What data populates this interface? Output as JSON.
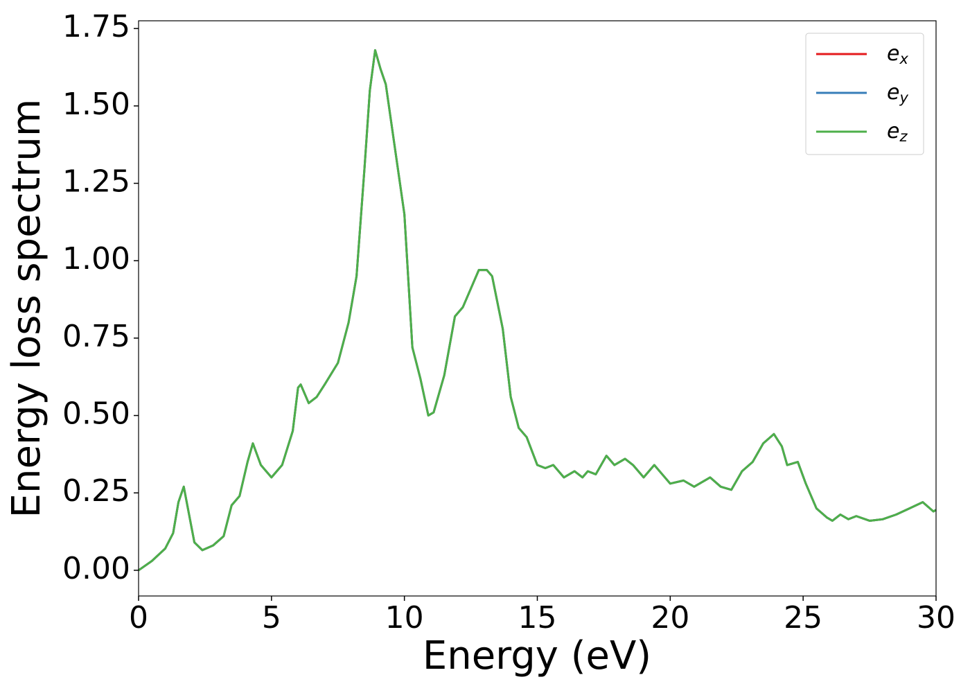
{
  "chart_data": {
    "type": "line",
    "xlabel": "Energy (eV)",
    "ylabel": "Energy loss spectrum",
    "xlim": [
      0,
      30
    ],
    "ylim": [
      -0.083,
      1.775
    ],
    "xticks": [
      0,
      5,
      10,
      15,
      20,
      25,
      30
    ],
    "yticks": [
      {
        "value": 0,
        "label": "0.00"
      },
      {
        "value": 0.25,
        "label": "0.25"
      },
      {
        "value": 0.5,
        "label": "0.50"
      },
      {
        "value": 0.75,
        "label": "0.75"
      },
      {
        "value": 1,
        "label": "1.00"
      },
      {
        "value": 1.25,
        "label": "1.25"
      },
      {
        "value": 1.5,
        "label": "1.50"
      },
      {
        "value": 1.75,
        "label": "1.75"
      }
    ],
    "legend": "upper right",
    "x": [
      0,
      0.5,
      1.0,
      1.3,
      1.5,
      1.7,
      1.9,
      2.1,
      2.4,
      2.8,
      3.2,
      3.5,
      3.8,
      4.1,
      4.3,
      4.6,
      5.0,
      5.4,
      5.8,
      6.0,
      6.1,
      6.4,
      6.7,
      7.0,
      7.5,
      7.9,
      8.2,
      8.5,
      8.7,
      8.9,
      9.1,
      9.3,
      9.7,
      10.0,
      10.3,
      10.6,
      10.9,
      11.1,
      11.5,
      11.9,
      12.2,
      12.5,
      12.8,
      13.1,
      13.3,
      13.7,
      14.0,
      14.3,
      14.6,
      15.0,
      15.3,
      15.6,
      16.0,
      16.4,
      16.7,
      16.9,
      17.2,
      17.6,
      17.9,
      18.3,
      18.6,
      19.0,
      19.4,
      19.7,
      20.0,
      20.5,
      20.9,
      21.5,
      21.9,
      22.3,
      22.7,
      23.1,
      23.5,
      23.9,
      24.2,
      24.4,
      24.8,
      25.1,
      25.5,
      25.9,
      26.1,
      26.4,
      26.7,
      27.0,
      27.5,
      28.0,
      28.5,
      29.0,
      29.5,
      29.9,
      30.0
    ],
    "series": [
      {
        "name": "ex",
        "color": "#e41a1c",
        "values": [
          0.0,
          0.03,
          0.07,
          0.12,
          0.22,
          0.27,
          0.18,
          0.09,
          0.065,
          0.08,
          0.11,
          0.21,
          0.24,
          0.35,
          0.41,
          0.34,
          0.3,
          0.34,
          0.45,
          0.59,
          0.6,
          0.54,
          0.56,
          0.6,
          0.67,
          0.8,
          0.95,
          1.3,
          1.55,
          1.68,
          1.62,
          1.57,
          1.33,
          1.15,
          0.72,
          0.62,
          0.5,
          0.51,
          0.63,
          0.82,
          0.85,
          0.91,
          0.97,
          0.97,
          0.95,
          0.78,
          0.56,
          0.46,
          0.43,
          0.34,
          0.33,
          0.34,
          0.3,
          0.32,
          0.3,
          0.32,
          0.31,
          0.37,
          0.34,
          0.36,
          0.34,
          0.3,
          0.34,
          0.31,
          0.28,
          0.29,
          0.27,
          0.3,
          0.27,
          0.26,
          0.32,
          0.35,
          0.41,
          0.44,
          0.4,
          0.34,
          0.35,
          0.28,
          0.2,
          0.17,
          0.16,
          0.18,
          0.165,
          0.175,
          0.16,
          0.165,
          0.18,
          0.2,
          0.22,
          0.19,
          0.195
        ]
      },
      {
        "name": "ey",
        "color": "#377eb8",
        "values": [
          0.0,
          0.03,
          0.07,
          0.12,
          0.22,
          0.27,
          0.18,
          0.09,
          0.065,
          0.08,
          0.11,
          0.21,
          0.24,
          0.35,
          0.41,
          0.34,
          0.3,
          0.34,
          0.45,
          0.59,
          0.6,
          0.54,
          0.56,
          0.6,
          0.67,
          0.8,
          0.95,
          1.3,
          1.55,
          1.68,
          1.62,
          1.57,
          1.33,
          1.15,
          0.72,
          0.62,
          0.5,
          0.51,
          0.63,
          0.82,
          0.85,
          0.91,
          0.97,
          0.97,
          0.95,
          0.78,
          0.56,
          0.46,
          0.43,
          0.34,
          0.33,
          0.34,
          0.3,
          0.32,
          0.3,
          0.32,
          0.31,
          0.37,
          0.34,
          0.36,
          0.34,
          0.3,
          0.34,
          0.31,
          0.28,
          0.29,
          0.27,
          0.3,
          0.27,
          0.26,
          0.32,
          0.35,
          0.41,
          0.44,
          0.4,
          0.34,
          0.35,
          0.28,
          0.2,
          0.17,
          0.16,
          0.18,
          0.165,
          0.175,
          0.16,
          0.165,
          0.18,
          0.2,
          0.22,
          0.19,
          0.195
        ]
      },
      {
        "name": "ez",
        "color": "#4daf4a",
        "values": [
          0.0,
          0.03,
          0.07,
          0.12,
          0.22,
          0.27,
          0.18,
          0.09,
          0.065,
          0.08,
          0.11,
          0.21,
          0.24,
          0.35,
          0.41,
          0.34,
          0.3,
          0.34,
          0.45,
          0.59,
          0.6,
          0.54,
          0.56,
          0.6,
          0.67,
          0.8,
          0.95,
          1.3,
          1.55,
          1.68,
          1.62,
          1.57,
          1.33,
          1.15,
          0.72,
          0.62,
          0.5,
          0.51,
          0.63,
          0.82,
          0.85,
          0.91,
          0.97,
          0.97,
          0.95,
          0.78,
          0.56,
          0.46,
          0.43,
          0.34,
          0.33,
          0.34,
          0.3,
          0.32,
          0.3,
          0.32,
          0.31,
          0.37,
          0.34,
          0.36,
          0.34,
          0.3,
          0.34,
          0.31,
          0.28,
          0.29,
          0.27,
          0.3,
          0.27,
          0.26,
          0.32,
          0.35,
          0.41,
          0.44,
          0.4,
          0.34,
          0.35,
          0.28,
          0.2,
          0.17,
          0.16,
          0.18,
          0.165,
          0.175,
          0.16,
          0.165,
          0.18,
          0.2,
          0.22,
          0.19,
          0.195
        ]
      }
    ]
  }
}
